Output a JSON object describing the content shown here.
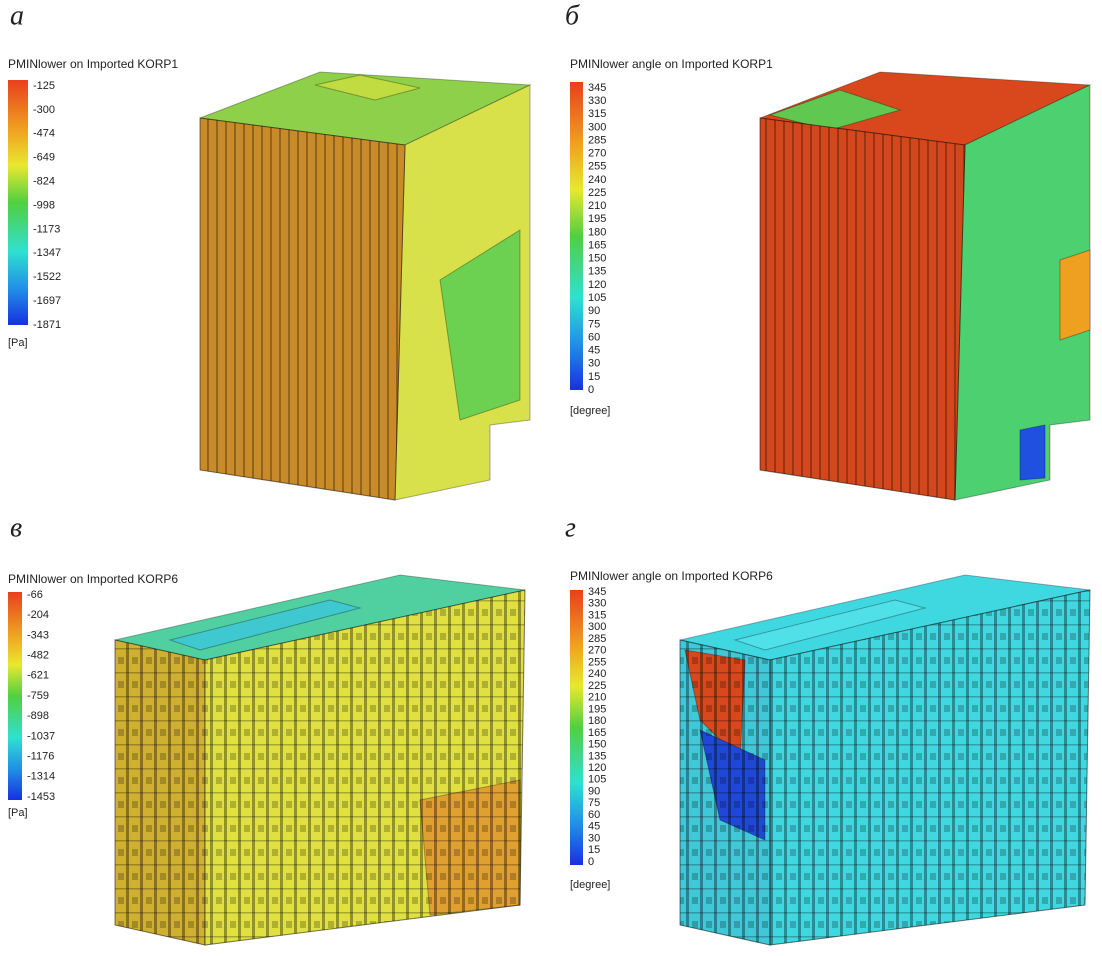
{
  "panels": [
    {
      "label": "а",
      "legend": {
        "title": "PMINlower on Imported KORP1",
        "labels": [
          "-125",
          "-300",
          "-474",
          "-649",
          "-824",
          "-998",
          "-1173",
          "-1347",
          "-1522",
          "-1697",
          "-1871"
        ],
        "unit": "[Pa]"
      }
    },
    {
      "label": "б",
      "legend": {
        "title": "PMINlower angle on Imported KORP1",
        "labels": [
          "345",
          "330",
          "315",
          "300",
          "285",
          "270",
          "255",
          "240",
          "225",
          "210",
          "195",
          "180",
          "165",
          "150",
          "135",
          "120",
          "105",
          "90",
          "75",
          "60",
          "45",
          "30",
          "15",
          "0"
        ],
        "unit": "[degree]"
      }
    },
    {
      "label": "в",
      "legend": {
        "title": "PMINlower on Imported KORP6",
        "labels": [
          "-66",
          "-204",
          "-343",
          "-482",
          "-621",
          "-759",
          "-898",
          "-1037",
          "-1176",
          "-1314",
          "-1453"
        ],
        "unit": "[Pa]"
      }
    },
    {
      "label": "г",
      "legend": {
        "title": "PMINlower angle on Imported KORP6",
        "labels": [
          "345",
          "330",
          "315",
          "300",
          "285",
          "270",
          "255",
          "240",
          "225",
          "210",
          "195",
          "180",
          "165",
          "150",
          "135",
          "120",
          "105",
          "90",
          "75",
          "60",
          "45",
          "30",
          "15",
          "0"
        ],
        "unit": "[degree]"
      }
    }
  ]
}
